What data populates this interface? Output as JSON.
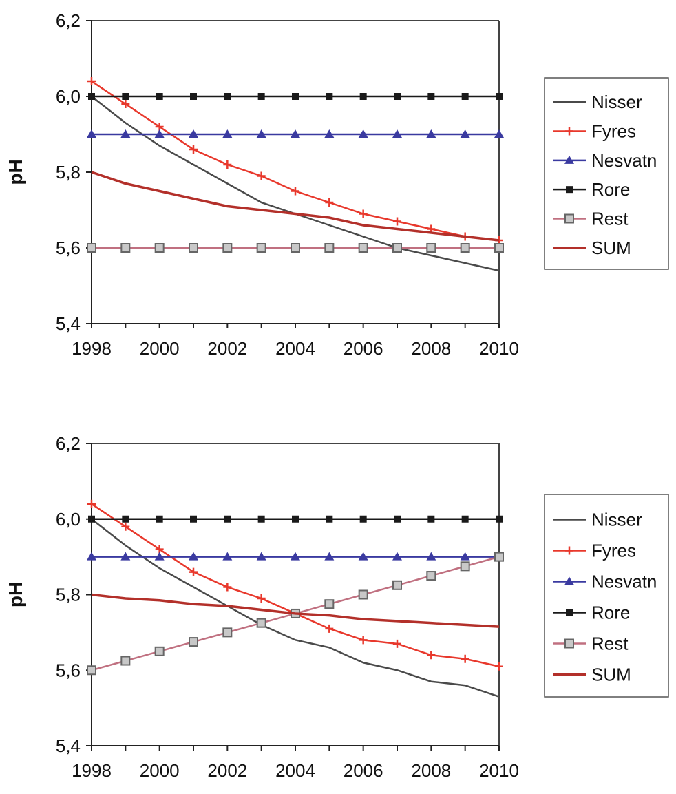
{
  "chart_data": [
    {
      "type": "line",
      "title": "",
      "xlabel": "",
      "ylabel": "pH",
      "xlim": [
        1998,
        2010
      ],
      "ylim": [
        5.4,
        6.2
      ],
      "x_ticks": [
        1998,
        2000,
        2002,
        2004,
        2006,
        2008,
        2010
      ],
      "y_ticks": [
        "5,4",
        "5,6",
        "5,8",
        "6,0",
        "6,2"
      ],
      "grid": false,
      "legend_position": "right",
      "x": [
        1998,
        1999,
        2000,
        2001,
        2002,
        2003,
        2004,
        2005,
        2006,
        2007,
        2008,
        2009,
        2010
      ],
      "series": [
        {
          "name": "Nisser",
          "color": "#4a4a4a",
          "marker": "none",
          "values": [
            6.0,
            5.93,
            5.87,
            5.82,
            5.77,
            5.72,
            5.69,
            5.66,
            5.63,
            5.6,
            5.58,
            5.56,
            5.54
          ]
        },
        {
          "name": "Fyres",
          "color": "#e8382c",
          "marker": "plus",
          "values": [
            6.04,
            5.98,
            5.92,
            5.86,
            5.82,
            5.79,
            5.75,
            5.72,
            5.69,
            5.67,
            5.65,
            5.63,
            5.62
          ]
        },
        {
          "name": "Nesvatn",
          "color": "#3a3aa0",
          "marker": "triangle",
          "values": [
            5.9,
            5.9,
            5.9,
            5.9,
            5.9,
            5.9,
            5.9,
            5.9,
            5.9,
            5.9,
            5.9,
            5.9,
            5.9
          ]
        },
        {
          "name": "Rore",
          "color": "#1a1a1a",
          "marker": "square",
          "values": [
            6.0,
            6.0,
            6.0,
            6.0,
            6.0,
            6.0,
            6.0,
            6.0,
            6.0,
            6.0,
            6.0,
            6.0,
            6.0
          ]
        },
        {
          "name": "Rest",
          "color": "#c07080",
          "marker": "open-square",
          "values": [
            5.6,
            5.6,
            5.6,
            5.6,
            5.6,
            5.6,
            5.6,
            5.6,
            5.6,
            5.6,
            5.6,
            5.6,
            5.6
          ]
        },
        {
          "name": "SUM",
          "color": "#b3302a",
          "marker": "none",
          "values": [
            5.8,
            5.77,
            5.75,
            5.73,
            5.71,
            5.7,
            5.69,
            5.68,
            5.66,
            5.65,
            5.64,
            5.63,
            5.62
          ]
        }
      ]
    },
    {
      "type": "line",
      "title": "",
      "xlabel": "",
      "ylabel": "pH",
      "xlim": [
        1998,
        2010
      ],
      "ylim": [
        5.4,
        6.2
      ],
      "x_ticks": [
        1998,
        2000,
        2002,
        2004,
        2006,
        2008,
        2010
      ],
      "y_ticks": [
        "5,4",
        "5,6",
        "5,8",
        "6,0",
        "6,2"
      ],
      "grid": false,
      "legend_position": "right",
      "x": [
        1998,
        1999,
        2000,
        2001,
        2002,
        2003,
        2004,
        2005,
        2006,
        2007,
        2008,
        2009,
        2010
      ],
      "series": [
        {
          "name": "Nisser",
          "color": "#4a4a4a",
          "marker": "none",
          "values": [
            6.0,
            5.93,
            5.87,
            5.82,
            5.77,
            5.72,
            5.68,
            5.66,
            5.62,
            5.6,
            5.57,
            5.56,
            5.53
          ]
        },
        {
          "name": "Fyres",
          "color": "#e8382c",
          "marker": "plus",
          "values": [
            6.04,
            5.98,
            5.92,
            5.86,
            5.82,
            5.79,
            5.75,
            5.71,
            5.68,
            5.67,
            5.64,
            5.63,
            5.61
          ]
        },
        {
          "name": "Nesvatn",
          "color": "#3a3aa0",
          "marker": "triangle",
          "values": [
            5.9,
            5.9,
            5.9,
            5.9,
            5.9,
            5.9,
            5.9,
            5.9,
            5.9,
            5.9,
            5.9,
            5.9,
            5.9
          ]
        },
        {
          "name": "Rore",
          "color": "#1a1a1a",
          "marker": "square",
          "values": [
            6.0,
            6.0,
            6.0,
            6.0,
            6.0,
            6.0,
            6.0,
            6.0,
            6.0,
            6.0,
            6.0,
            6.0,
            6.0
          ]
        },
        {
          "name": "Rest",
          "color": "#c07080",
          "marker": "open-square",
          "values": [
            5.6,
            5.625,
            5.65,
            5.675,
            5.7,
            5.725,
            5.75,
            5.775,
            5.8,
            5.825,
            5.85,
            5.875,
            5.9
          ]
        },
        {
          "name": "SUM",
          "color": "#b3302a",
          "marker": "none",
          "values": [
            5.8,
            5.79,
            5.785,
            5.775,
            5.77,
            5.76,
            5.75,
            5.745,
            5.735,
            5.73,
            5.725,
            5.72,
            5.715
          ]
        }
      ]
    }
  ]
}
